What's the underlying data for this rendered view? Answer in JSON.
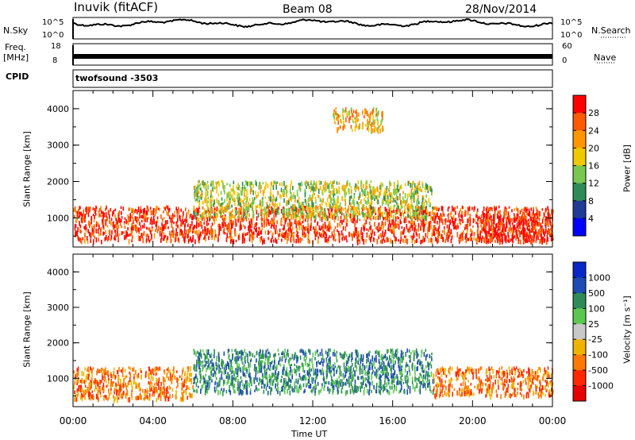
{
  "header": {
    "station": "Inuvik (fitACF)",
    "beam": "Beam 08",
    "date": "28/Nov/2014"
  },
  "summary_panels": {
    "nsky": {
      "label": "N.Sky",
      "ticks": [
        "10^5",
        "10^0"
      ]
    },
    "nsearch": {
      "label": "N.Search",
      "ticks": [
        "10^5",
        "10^0"
      ]
    },
    "freq": {
      "label_line1": "Freq.",
      "label_line2": "[MHz]",
      "ticks": [
        "18",
        "8"
      ]
    },
    "nave": {
      "label": "Nave",
      "ticks": [
        "60",
        "0"
      ]
    },
    "cpid": {
      "label": "CPID",
      "value": "twofsound -3503"
    }
  },
  "chart_data": [
    {
      "type": "heatmap",
      "panel": "power",
      "ylabel": "Slant Range [km]",
      "colorbar_label": "Power [dB]",
      "colorbar_ticks": [
        "28",
        "24",
        "20",
        "16",
        "12",
        "8",
        "4"
      ],
      "colorbar_colors": [
        "#ff0000",
        "#ff5a00",
        "#ff9600",
        "#f0c800",
        "#78c850",
        "#2e8b57",
        "#1e3c96",
        "#0000ff"
      ],
      "yticks": [
        1000,
        2000,
        3000,
        4000
      ],
      "ylim": [
        200,
        4500
      ],
      "xlim_hours": [
        0,
        24
      ],
      "echo_regions": [
        {
          "hours": [
            0,
            24
          ],
          "range_km": [
            350,
            1300
          ],
          "typical_db": 26
        },
        {
          "hours": [
            6,
            18
          ],
          "range_km": [
            1000,
            2000
          ],
          "typical_db": 14
        },
        {
          "hours": [
            13,
            15.5
          ],
          "range_km": [
            3400,
            4000
          ],
          "typical_db": 18
        },
        {
          "hours": [
            20.5,
            24
          ],
          "range_km": [
            350,
            1100
          ],
          "typical_db": 30
        }
      ]
    },
    {
      "type": "heatmap",
      "panel": "velocity",
      "ylabel": "Slant Range [km]",
      "colorbar_label": "Velocity [m s⁻¹]",
      "colorbar_ticks": [
        "1000",
        "500",
        "100",
        "25",
        "-25",
        "-100",
        "-500",
        "-1000"
      ],
      "colorbar_colors": [
        "#0a28c8",
        "#1e4bb4",
        "#2e8b57",
        "#5ac850",
        "#c8c8c8",
        "#f0b400",
        "#ff7800",
        "#ff2800",
        "#e60000"
      ],
      "yticks": [
        1000,
        2000,
        3000,
        4000
      ],
      "ylim": [
        200,
        4500
      ],
      "xlim_hours": [
        0,
        24
      ],
      "echo_regions": [
        {
          "hours": [
            0,
            6
          ],
          "range_km": [
            400,
            1300
          ],
          "typical_ms": -150
        },
        {
          "hours": [
            6,
            18
          ],
          "range_km": [
            600,
            1800
          ],
          "typical_ms": 200
        },
        {
          "hours": [
            18,
            24
          ],
          "range_km": [
            500,
            1300
          ],
          "typical_ms": -100
        }
      ]
    }
  ],
  "time_axis": {
    "ticks": [
      "00:00",
      "04:00",
      "08:00",
      "12:00",
      "16:00",
      "20:00",
      "00:00"
    ],
    "label": "Time UT"
  },
  "colors": {
    "axis": "#000000"
  }
}
